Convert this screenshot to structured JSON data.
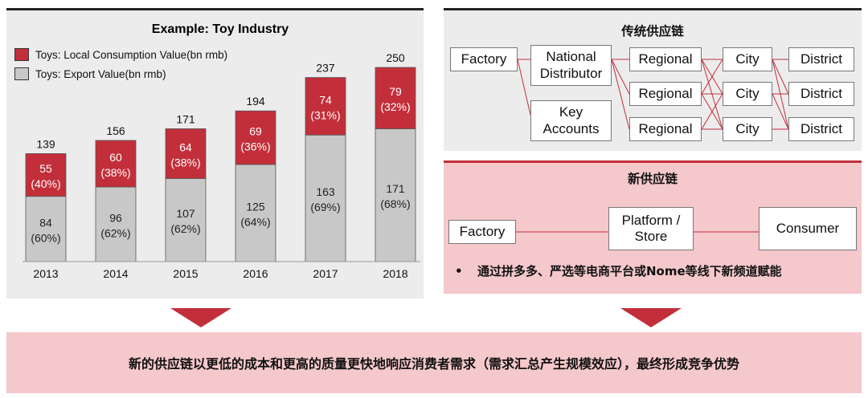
{
  "chart_data": {
    "type": "bar",
    "stacked": true,
    "title": "Example: Toy Industry",
    "categories": [
      "2013",
      "2014",
      "2015",
      "2016",
      "2017",
      "2018"
    ],
    "totals": [
      "139",
      "156",
      "171",
      "194",
      "237",
      "250"
    ],
    "series": [
      {
        "name": "Toys: Export Value(bn rmb)",
        "color": "#c8c8c8",
        "label_color": "#222222",
        "values": [
          84,
          96,
          107,
          125,
          163,
          171
        ],
        "labels": [
          "84",
          "96",
          "107",
          "125",
          "163",
          "171"
        ],
        "shares": [
          "(60%)",
          "(62%)",
          "(62%)",
          "(64%)",
          "(69%)",
          "(68%)"
        ]
      },
      {
        "name": "Toys: Local Consumption Value(bn rmb)",
        "color": "#c22f3b",
        "label_color": "#ffffff",
        "values": [
          55,
          60,
          64,
          69,
          74,
          79
        ],
        "labels": [
          "55",
          "60",
          "64",
          "69",
          "74",
          "79"
        ],
        "shares": [
          "(40%)",
          "(38%)",
          "(38%)",
          "(36%)",
          "(31%)",
          "(32%)"
        ]
      }
    ],
    "legend": [
      {
        "label": "Toys: Local Consumption Value(bn rmb)",
        "color": "#c22f3b"
      },
      {
        "label": "Toys: Export Value(bn rmb)",
        "color": "#c8c8c8"
      }
    ],
    "ylim": [
      0,
      250
    ],
    "xlabel": "",
    "ylabel": ""
  },
  "traditional": {
    "title": "传统供应链",
    "factory": "Factory",
    "national_distributor": "National\nDistributor",
    "key_accounts": "Key\nAccounts",
    "regional": [
      "Regional",
      "Regional",
      "Regional"
    ],
    "city": [
      "City",
      "City",
      "City"
    ],
    "district": [
      "District",
      "District",
      "District"
    ]
  },
  "new_chain": {
    "title": "新供应链",
    "factory": "Factory",
    "platform": "Platform /\nStore",
    "consumer": "Consumer",
    "bullet_mark": "•",
    "bullet": "通过拼多多、严选等电商平台或Nome等线下新频道赋能"
  },
  "conclusion": "新的供应链以更低的成本和更高的质量更快地响应消费者需求（需求汇总产生规模效应），最终形成竞争优势",
  "colors": {
    "accent": "#c22f3b",
    "pink": "#f5c8cb",
    "panel_gray": "#ececec",
    "bar_gray": "#c8c8c8"
  }
}
